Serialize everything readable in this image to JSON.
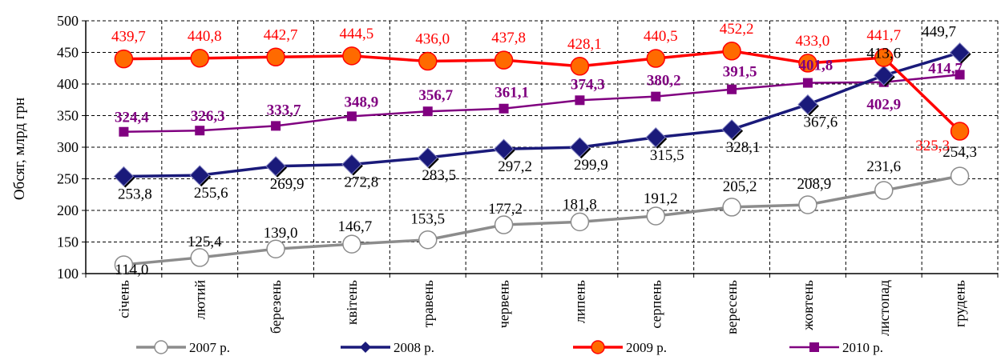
{
  "chart_data": {
    "type": "line",
    "ylabel": "Обсяг, млрд грн",
    "ylim": [
      100,
      500
    ],
    "yticks": [
      100,
      150,
      200,
      250,
      300,
      350,
      400,
      450,
      500
    ],
    "grid": true,
    "legend_position": "bottom",
    "categories": [
      "січень",
      "лютий",
      "березень",
      "квітень",
      "травень",
      "червень",
      "липень",
      "серпень",
      "вересень",
      "жовтень",
      "листопад",
      "грудень"
    ],
    "series": [
      {
        "name": "2007 р.",
        "color": "#8c8c8c",
        "marker": "circle-open",
        "label_color": "#000000",
        "label_weight": "normal",
        "values": [
          114.0,
          125.4,
          139.0,
          146.7,
          153.5,
          177.2,
          181.8,
          191.2,
          205.2,
          208.9,
          231.6,
          254.3
        ],
        "labels": [
          "114,0",
          "125,4",
          "139,0",
          "146,7",
          "153,5",
          "177,2",
          "181,8",
          "191,2",
          "205,2",
          "208,9",
          "231,6",
          "254,3"
        ]
      },
      {
        "name": "2008 р.",
        "color": "#1a1a7a",
        "marker": "diamond",
        "label_color": "#000000",
        "label_weight": "normal",
        "values": [
          253.8,
          255.6,
          269.9,
          272.8,
          283.5,
          297.2,
          299.9,
          315.5,
          328.1,
          367.6,
          413.6,
          449.7
        ],
        "labels": [
          "253,8",
          "255,6",
          "269,9",
          "272,8",
          "283,5",
          "297,2",
          "299,9",
          "315,5",
          "328,1",
          "367,6",
          "413,6",
          "449,7"
        ]
      },
      {
        "name": "2009 р.",
        "color": "#ff0000",
        "marker": "circle-orange",
        "label_color": "#ff0000",
        "label_weight": "normal",
        "values": [
          439.7,
          440.8,
          442.7,
          444.5,
          436.0,
          437.8,
          428.1,
          440.5,
          452.2,
          433.0,
          441.7,
          325.3
        ],
        "labels": [
          "439,7",
          "440,8",
          "442,7",
          "444,5",
          "436,0",
          "437,8",
          "428,1",
          "440,5",
          "452,2",
          "433,0",
          "441,7",
          "325,3"
        ]
      },
      {
        "name": "2010 р.",
        "color": "#800080",
        "marker": "square",
        "label_color": "#800080",
        "label_weight": "bold",
        "values": [
          324.4,
          326.3,
          333.7,
          348.9,
          356.7,
          361.1,
          374.3,
          380.2,
          391.5,
          401.8,
          402.9,
          414.7
        ],
        "labels": [
          "324,4",
          "326,3",
          "333,7",
          "348,9",
          "356,7",
          "361,1",
          "374,3",
          "380,2",
          "391,5",
          "401,8",
          "402,9",
          "414,7"
        ]
      }
    ]
  }
}
